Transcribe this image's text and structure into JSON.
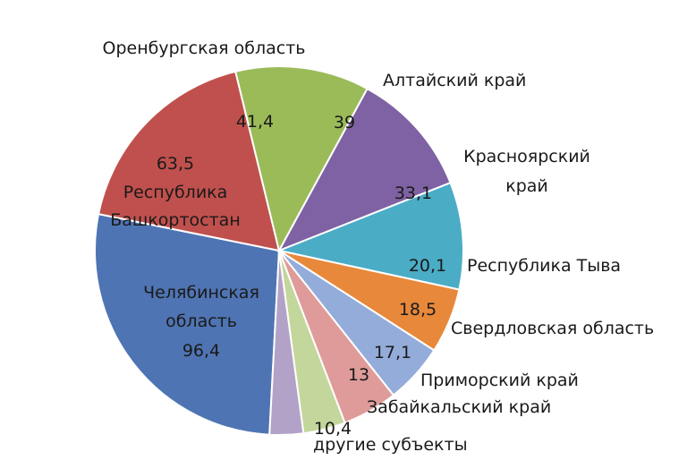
{
  "chart_data": {
    "type": "pie",
    "title": "",
    "slices": [
      {
        "category": "Челябинская область",
        "value": 96.4,
        "value_label": "96,4",
        "color": "#4f74b3"
      },
      {
        "category": "Республика Башкортостан",
        "value": 63.5,
        "value_label": "63,5",
        "color": "#c0504d"
      },
      {
        "category": "Оренбургская область",
        "value": 41.4,
        "value_label": "41,4",
        "color": "#9bbb59"
      },
      {
        "category": "Алтайский край",
        "value": 39,
        "value_label": "39",
        "color": "#7f62a3"
      },
      {
        "category": "Красноярский край",
        "value": 33.1,
        "value_label": "33,1",
        "color": "#4bacc6"
      },
      {
        "category": "Республика Тыва",
        "value": 20.1,
        "value_label": "20,1",
        "color": "#e8883a"
      },
      {
        "category": "Свердловская область",
        "value": 18.5,
        "value_label": "18,5",
        "color": "#94acd9"
      },
      {
        "category": "Приморский край",
        "value": 17.1,
        "value_label": "17,1",
        "color": "#df9b9a"
      },
      {
        "category": "Забайкальский край",
        "value": 13,
        "value_label": "13",
        "color": "#c3d69b"
      },
      {
        "category": "другие субъекты",
        "value": 10.4,
        "value_label": "10,4",
        "color": "#b3a2c7"
      }
    ]
  }
}
